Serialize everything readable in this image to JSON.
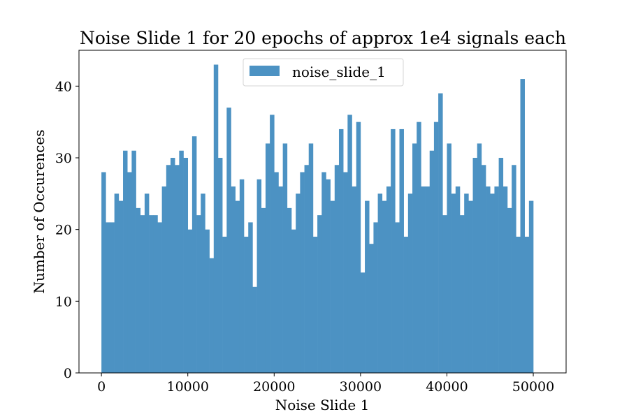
{
  "chart_data": {
    "type": "bar",
    "title": "Noise Slide 1 for 20 epochs of approx 1e4 signals each",
    "xlabel": "Noise Slide 1",
    "ylabel": "Number of Occurences",
    "legend": {
      "label": "noise_slide_1",
      "placement": "upper center"
    },
    "xlim": [
      -2600,
      53800
    ],
    "ylim": [
      0,
      45
    ],
    "xticks": [
      0,
      10000,
      20000,
      30000,
      40000,
      50000
    ],
    "xtick_labels": [
      "0",
      "10000",
      "20000",
      "30000",
      "40000",
      "50000"
    ],
    "yticks": [
      0,
      10,
      20,
      30,
      40
    ],
    "ytick_labels": [
      "0",
      "10",
      "20",
      "30",
      "40"
    ],
    "grid": false,
    "color": "#4c92c3",
    "bin_start": 0,
    "bin_width": 500,
    "series": [
      {
        "name": "noise_slide_1",
        "values": [
          28,
          21,
          21,
          25,
          24,
          31,
          28,
          31,
          23,
          22,
          25,
          22,
          22,
          21,
          26,
          29,
          30,
          29,
          31,
          30,
          20,
          33,
          22,
          25,
          20,
          16,
          43,
          30,
          19,
          37,
          26,
          24,
          27,
          19,
          21,
          12,
          27,
          23,
          32,
          36,
          28,
          26,
          32,
          23,
          20,
          25,
          28,
          29,
          32,
          19,
          22,
          28,
          27,
          24,
          29,
          34,
          28,
          36,
          26,
          35,
          14,
          24,
          18,
          21,
          25,
          24,
          26,
          34,
          21,
          34,
          19,
          25,
          32,
          35,
          26,
          26,
          31,
          35,
          39,
          22,
          32,
          25,
          26,
          22,
          25,
          24,
          30,
          32,
          29,
          26,
          25,
          26,
          30,
          26,
          23,
          29,
          19,
          41,
          19,
          24
        ]
      }
    ]
  }
}
